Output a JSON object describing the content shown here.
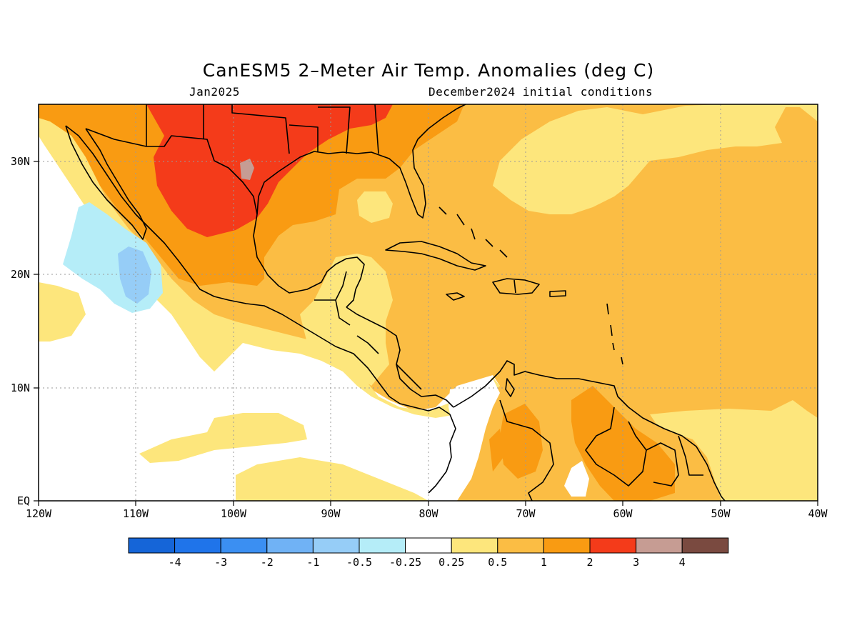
{
  "title": "CanESM5 2–Meter Air Temp. Anomalies (deg C)",
  "subtitle_left": "Jan2025",
  "subtitle_right": "December2024 initial conditions",
  "x_axis": {
    "ticks": [
      "120W",
      "110W",
      "100W",
      "90W",
      "80W",
      "70W",
      "60W",
      "50W",
      "40W"
    ],
    "lon_range": [
      -120,
      -40
    ]
  },
  "y_axis": {
    "ticks": [
      "EQ",
      "10N",
      "20N",
      "30N"
    ],
    "lat_range": [
      0,
      35
    ]
  },
  "colorbar": {
    "labels": [
      "-4",
      "-3",
      "-2",
      "-1",
      "-0.5",
      "-0.25",
      "0.25",
      "0.5",
      "1",
      "2",
      "3",
      "4"
    ],
    "colors": [
      "#1565d8",
      "#1f74ea",
      "#3b8ff2",
      "#70b2f5",
      "#96cdf7",
      "#b5edf8",
      "#ffffff",
      "#fde67c",
      "#fbbd44",
      "#f99b12",
      "#f43b1a",
      "#c69c93",
      "#7a4a40"
    ]
  },
  "map": {
    "region": "Gulf of Mexico, Caribbean, Central America and tropical Atlantic",
    "colors": {
      "white": "#ffffff",
      "lightblue": "#b5edf8",
      "blue": "#96cdf7",
      "yellow": "#fde67c",
      "lightorange": "#fbbd44",
      "orange": "#f99b12",
      "red": "#f43b1a",
      "pink": "#c69c93",
      "coast": "#000000",
      "grid": "#9a9a9a"
    }
  }
}
